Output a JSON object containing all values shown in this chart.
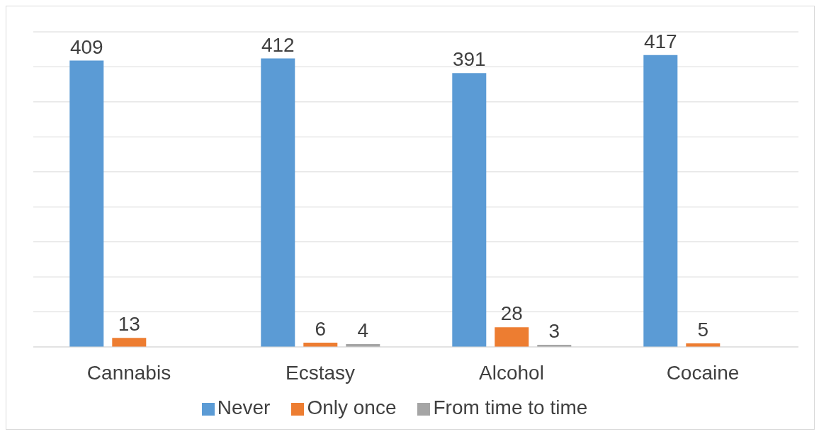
{
  "chart_data": {
    "type": "bar",
    "categories": [
      "Cannabis",
      "Ecstasy",
      "Alcohol",
      "Cocaine"
    ],
    "series": [
      {
        "name": "Never",
        "color": "#5b9bd5",
        "values": [
          409,
          412,
          391,
          417
        ]
      },
      {
        "name": "Only once",
        "color": "#ed7d31",
        "values": [
          13,
          6,
          28,
          5
        ]
      },
      {
        "name": "From time to time",
        "color": "#a5a5a5",
        "values": [
          null,
          4,
          3,
          null
        ]
      }
    ],
    "ylim": [
      0,
      450
    ],
    "yticks": [
      {
        "value": 0,
        "label": null
      },
      {
        "value": 50,
        "label": null
      },
      {
        "value": 100,
        "label": null
      },
      {
        "value": 150,
        "label": null
      },
      {
        "value": 200,
        "label": null
      },
      {
        "value": 250,
        "label": null
      },
      {
        "value": 300,
        "label": null
      },
      {
        "value": 350,
        "label": null
      },
      {
        "value": 400,
        "label": null
      },
      {
        "value": 450,
        "label": null
      }
    ],
    "tick_labels": "x",
    "grid": "y",
    "data_labels": true,
    "legend": "bottom"
  }
}
